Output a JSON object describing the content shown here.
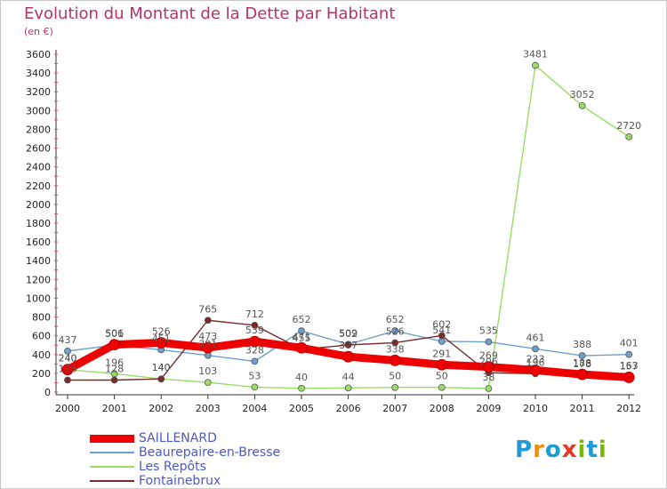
{
  "title": "Evolution du Montant de la Dette par Habitant",
  "unit": "(en €)",
  "logo": {
    "letters": [
      "P",
      "r",
      "o",
      "x",
      "i",
      "t",
      "i"
    ],
    "colors": [
      "#1f9ad6",
      "#f28c00",
      "#1f9ad6",
      "#e8382a",
      "#7ab800",
      "#1f9ad6",
      "#7ab800"
    ]
  },
  "chart_data": {
    "type": "line",
    "title": "Evolution du Montant de la Dette par Habitant",
    "ylabel": "(en €)",
    "xlabel": "",
    "ylim": [
      0,
      3600
    ],
    "yticks": [
      "0",
      "200",
      "400",
      "600",
      "800",
      "1000",
      "1200",
      "1400",
      "1600",
      "1800",
      "2000",
      "2200",
      "2400",
      "2600",
      "2800",
      "3000",
      "3200",
      "3400",
      "3600"
    ],
    "categories": [
      "2000",
      "2001",
      "2002",
      "2003",
      "2004",
      "2005",
      "2006",
      "2007",
      "2008",
      "2009",
      "2010",
      "2011",
      "2012"
    ],
    "grid": false,
    "legend": "bottom-left",
    "series": [
      {
        "name": "SAILLENARD",
        "color": "#ee0000",
        "values": [
          240,
          506,
          526,
          473,
          539,
          471,
          377,
          338,
          291,
          269,
          233,
          188,
          157
        ]
      },
      {
        "name": "Beaurepaire-en-Bresse",
        "color": "#6fa0cb",
        "values": [
          437,
          501,
          451,
          391,
          328,
          652,
          509,
          652,
          541,
          535,
          461,
          388,
          401
        ]
      },
      {
        "name": "Les Repôts",
        "color": "#99dd66",
        "values": [
          240,
          196,
          140,
          103,
          53,
          40,
          44,
          50,
          50,
          38,
          3481,
          3052,
          2720
        ]
      },
      {
        "name": "Fontainebrux",
        "color": "#7a2a2a",
        "values": [
          128,
          128,
          140,
          765,
          712,
          455,
          502,
          526,
          602,
          206,
          196,
          178,
          163
        ]
      }
    ],
    "labels": [
      [
        "240",
        "506",
        "526",
        "473",
        "539",
        "471",
        "377",
        "338",
        "291",
        "269",
        "233",
        "188",
        "157"
      ],
      [
        "437",
        "501",
        "451",
        "391",
        "328",
        "652",
        "509",
        "652",
        "541",
        "535",
        "461",
        "388",
        "401"
      ],
      [
        "240",
        "196",
        "140",
        "103",
        "53",
        "40",
        "44",
        "50",
        "50",
        "38",
        "3481",
        "3052",
        "2720"
      ],
      [
        "128",
        "128",
        "140",
        "765",
        "712",
        "455",
        "502",
        "526",
        "602",
        "206",
        "196",
        "178",
        "163"
      ]
    ]
  }
}
